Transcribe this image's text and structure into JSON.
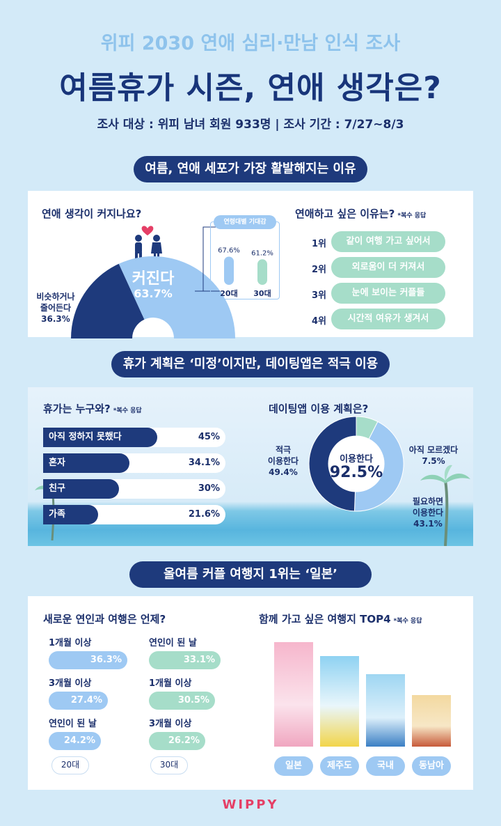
{
  "header": {
    "subtitle": "위피 2030 연애 심리·만남 인식 조사",
    "title": "여름휴가 시즌, 연애 생각은?",
    "meta": "조사 대상 : 위피 남녀 회원  933명 | 조사 기간 : 7/27~8/3"
  },
  "section1": {
    "pill": "여름, 연애 세포가 가장 활발해지는 이유",
    "q1": {
      "title": "연애 생각이 커지나요?",
      "big_label": "커진다",
      "big_value": "63.7%",
      "small_label_line1": "비슷하거나",
      "small_label_line2": "줄어든다",
      "small_value": "36.3%",
      "age_box_title": "연령대별 기대감"
    },
    "q2": {
      "title": "연애하고 싶은 이유는?",
      "note": "*복수 응답",
      "items": [
        {
          "rank": "1위",
          "label": "같이 여행 가고 싶어서"
        },
        {
          "rank": "2위",
          "label": "외로움이 더 커져서"
        },
        {
          "rank": "3위",
          "label": "눈에 보이는 커플들"
        },
        {
          "rank": "4위",
          "label": "시간적 여유가 생겨서"
        }
      ]
    }
  },
  "section2": {
    "pill": "휴가 계획은 ‘미정’이지만, 데이팅앱은 적극 이용",
    "q1": {
      "title": "휴가는 누구와?",
      "note": "*복수 응답"
    },
    "q2": {
      "title": "데이팅앱 이용 계획은?",
      "center_label": "이용한다",
      "center_value": "92.5%",
      "active_line1": "적극",
      "active_line2": "이용한다",
      "active_value": "49.4%",
      "unsure_line1": "아직 모르겠다",
      "unsure_value": "7.5%",
      "need_line1": "필요하면",
      "need_line2": "이용한다",
      "need_value": "43.1%"
    }
  },
  "section3": {
    "pill": "올여름 커플 여행지 1위는 ‘일본’",
    "q1": {
      "title": "새로운 연인과 여행은 언제?",
      "group20": "20대",
      "group30": "30대"
    },
    "q2": {
      "title": "함께 가고 싶은 여행지 TOP4",
      "note": "*복수 응답"
    }
  },
  "footer": {
    "brand": "WIPPY"
  },
  "chart_data": [
    {
      "type": "pie",
      "title": "연애 생각이 커지나요?",
      "categories": [
        "커진다",
        "비슷하거나 줄어든다"
      ],
      "values": [
        63.7,
        36.3
      ]
    },
    {
      "type": "bar",
      "title": "연령대별 기대감",
      "categories": [
        "20대",
        "30대"
      ],
      "values": [
        67.6,
        61.2
      ],
      "value_labels": [
        "67.6%",
        "61.2%"
      ],
      "ylim": [
        0,
        100
      ]
    },
    {
      "type": "bar",
      "title": "휴가는 누구와?",
      "categories": [
        "아직 정하지 못했다",
        "혼자",
        "친구",
        "가족"
      ],
      "values": [
        45,
        34.1,
        30,
        21.6
      ],
      "value_labels": [
        "45%",
        "34.1%",
        "30%",
        "21.6%"
      ],
      "ylim": [
        0,
        100
      ]
    },
    {
      "type": "pie",
      "title": "데이팅앱 이용 계획은?",
      "categories": [
        "적극 이용한다",
        "필요하면 이용한다",
        "아직 모르겠다"
      ],
      "values": [
        49.4,
        43.1,
        7.5
      ],
      "colors": [
        "#1e3a7c",
        "#9ec9f3",
        "#a6ddc9"
      ]
    },
    {
      "type": "bar",
      "title": "새로운 연인과 여행은 언제?",
      "series": [
        {
          "name": "20대",
          "categories": [
            "1개월 이상",
            "3개월 이상",
            "연인이 된 날"
          ],
          "values": [
            36.3,
            27.4,
            24.2
          ],
          "value_labels": [
            "36.3%",
            "27.4%",
            "24.2%"
          ]
        },
        {
          "name": "30대",
          "categories": [
            "연인이 된 날",
            "1개월 이상",
            "3개월 이상"
          ],
          "values": [
            33.1,
            30.5,
            26.2
          ],
          "value_labels": [
            "33.1%",
            "30.5%",
            "26.2%"
          ]
        }
      ],
      "ylim": [
        0,
        40
      ]
    },
    {
      "type": "bar",
      "title": "함께 가고 싶은 여행지 TOP4",
      "categories": [
        "일본",
        "제주도",
        "국내",
        "동남아"
      ],
      "ranks": [
        1,
        2,
        3,
        4
      ]
    }
  ]
}
